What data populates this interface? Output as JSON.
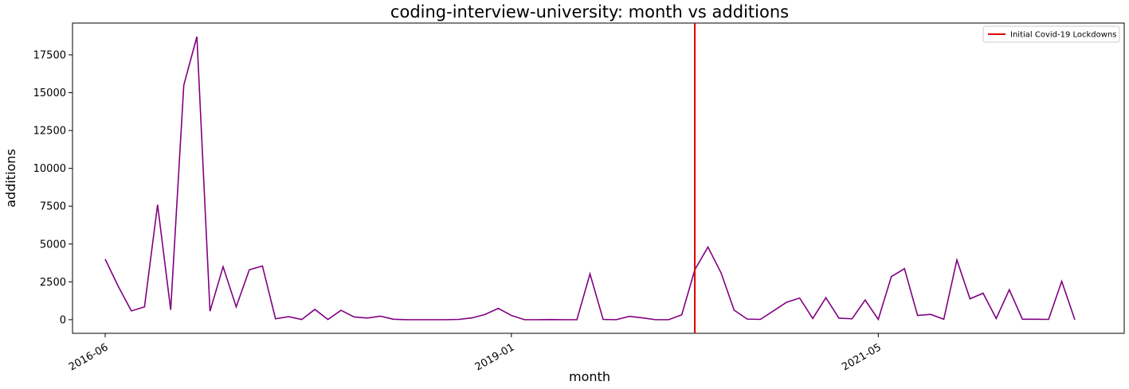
{
  "chart_data": {
    "type": "line",
    "title": "coding-interview-university: month vs additions",
    "xlabel": "month",
    "ylabel": "additions",
    "x_tick_labels": [
      "2016-06",
      "2019-01",
      "2021-05"
    ],
    "x_tick_indices": [
      0,
      31,
      59
    ],
    "ylim": [
      -900,
      19600
    ],
    "y_ticks": [
      0,
      2500,
      5000,
      7500,
      10000,
      12500,
      15000,
      17500
    ],
    "y_tick_labels": [
      "0",
      "2500",
      "5000",
      "7500",
      "10000",
      "12500",
      "15000",
      "17500"
    ],
    "grid": false,
    "legend_position": "top-right",
    "series": [
      {
        "name": "additions",
        "color": "#800080",
        "values": [
          4000,
          2200,
          580,
          850,
          7600,
          650,
          15500,
          18700,
          560,
          3500,
          850,
          3300,
          3550,
          60,
          200,
          10,
          680,
          10,
          620,
          180,
          110,
          230,
          30,
          0,
          0,
          0,
          0,
          20,
          120,
          350,
          750,
          280,
          0,
          0,
          10,
          0,
          0,
          3030,
          20,
          0,
          220,
          120,
          0,
          0,
          320,
          3300,
          4800,
          3100,
          630,
          40,
          20,
          580,
          1150,
          1430,
          80,
          1450,
          100,
          60,
          1300,
          20,
          2850,
          3370,
          280,
          350,
          30,
          3950,
          1380,
          1750,
          80,
          1980,
          30,
          30,
          20,
          2540,
          0
        ]
      }
    ],
    "vline": {
      "index": 45,
      "label": "Initial Covid-19 Lockdowns",
      "color": "#dd0000"
    }
  }
}
